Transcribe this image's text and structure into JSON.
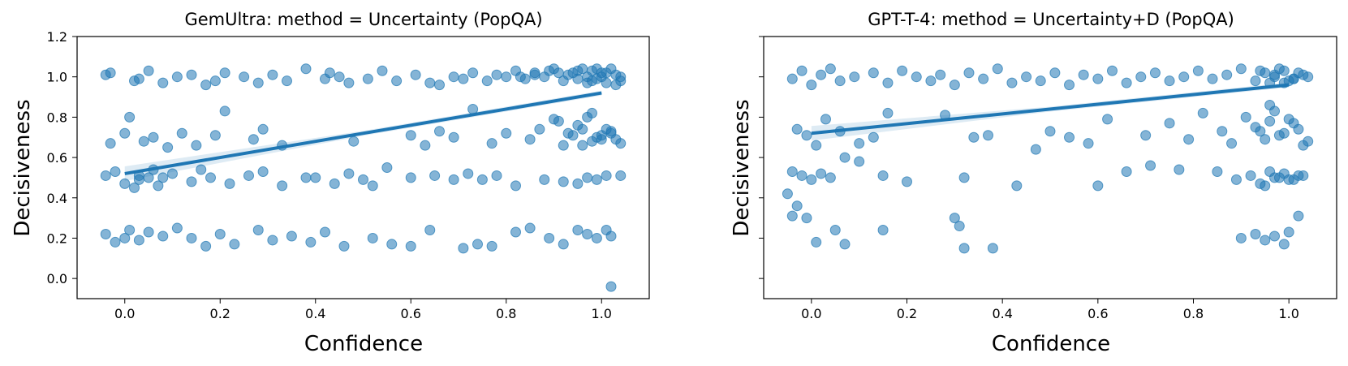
{
  "chart_data": [
    {
      "type": "scatter",
      "title": "GemUltra: method = Uncertainty (PopQA)",
      "xlabel": "Confidence",
      "ylabel": "Decisiveness",
      "xlim": [
        -0.1,
        1.1
      ],
      "ylim": [
        -0.1,
        1.2
      ],
      "xticks": [
        "0.0",
        "0.2",
        "0.4",
        "0.6",
        "0.8",
        "1.0"
      ],
      "yticks": [
        "0.0",
        "0.2",
        "0.4",
        "0.6",
        "0.8",
        "1.0",
        "1.2"
      ],
      "show_yticklabels": true,
      "grid": false,
      "color": "#1f77b4",
      "regression": {
        "x": [
          0.0,
          1.0
        ],
        "y": [
          0.52,
          0.92
        ]
      },
      "series": [
        {
          "x": [
            -0.04,
            -0.03,
            0.02,
            0.03,
            0.05,
            0.08,
            0.11,
            0.14,
            0.17,
            0.19,
            0.21,
            0.25,
            0.28,
            0.31,
            0.34,
            0.38,
            0.42,
            0.43,
            0.45,
            0.47,
            0.51,
            0.54,
            0.57,
            0.61,
            0.64,
            0.66,
            0.69,
            0.71,
            0.73,
            0.76,
            0.78,
            0.8,
            0.82,
            0.84,
            0.86,
            0.88,
            0.9,
            0.92,
            0.93,
            0.95,
            0.97,
            0.99,
            1.01,
            1.03,
            1.04,
            0.96,
            0.98,
            1.0,
            1.02,
            0.94,
            0.97,
            1.01,
            1.03,
            0.99,
            0.95,
            0.98,
            1.0,
            1.04,
            0.91,
            0.89,
            0.86,
            0.83,
            -0.03,
            0.0,
            0.01,
            0.04,
            0.06,
            0.09,
            0.12,
            0.15,
            0.19,
            0.21,
            0.27,
            0.29,
            0.33,
            0.48,
            0.6,
            0.63,
            0.66,
            0.69,
            0.73,
            0.77,
            0.8,
            0.85,
            0.87,
            0.9,
            0.92,
            0.94,
            0.96,
            0.98,
            1.0,
            1.02,
            1.04,
            0.97,
            0.99,
            1.01,
            0.95,
            1.03,
            0.93,
            0.96,
            0.98,
            1.0,
            1.02,
            0.91,
            -0.04,
            -0.02,
            0.0,
            0.02,
            0.03,
            0.05,
            0.07,
            0.1,
            0.14,
            0.18,
            0.22,
            0.26,
            0.29,
            0.33,
            0.4,
            0.44,
            0.47,
            0.5,
            0.52,
            0.55,
            0.6,
            0.65,
            0.69,
            0.72,
            0.75,
            0.78,
            0.82,
            0.88,
            0.92,
            0.95,
            0.97,
            0.99,
            1.01,
            1.04,
            0.03,
            0.06,
            0.08,
            0.16,
            0.38,
            -0.04,
            -0.02,
            0.0,
            0.01,
            0.03,
            0.05,
            0.08,
            0.11,
            0.14,
            0.17,
            0.2,
            0.23,
            0.28,
            0.31,
            0.35,
            0.39,
            0.42,
            0.46,
            0.52,
            0.56,
            0.6,
            0.64,
            0.71,
            0.74,
            0.77,
            0.82,
            0.85,
            0.89,
            0.92,
            0.95,
            0.97,
            0.99,
            1.01,
            1.02,
            1.02
          ],
          "y": [
            1.01,
            1.02,
            0.98,
            0.99,
            1.03,
            0.97,
            1.0,
            1.01,
            0.96,
            0.98,
            1.02,
            1.0,
            0.97,
            1.01,
            0.98,
            1.04,
            0.99,
            1.02,
            1.0,
            0.97,
            0.99,
            1.03,
            0.98,
            1.01,
            0.97,
            0.96,
            1.0,
            0.99,
            1.02,
            0.98,
            1.01,
            1.0,
            1.03,
            0.99,
            1.02,
            1.0,
            1.04,
            0.98,
            1.01,
            1.03,
            1.0,
            0.99,
            1.02,
            1.01,
            0.98,
            1.04,
            1.03,
            1.02,
            1.04,
            1.02,
            0.97,
            0.97,
            0.96,
            1.04,
            0.99,
            0.98,
            1.0,
            1.0,
            1.02,
            1.03,
            1.01,
            1.0,
            0.67,
            0.72,
            0.8,
            0.68,
            0.7,
            0.65,
            0.72,
            0.66,
            0.71,
            0.83,
            0.69,
            0.74,
            0.66,
            0.68,
            0.71,
            0.66,
            0.73,
            0.7,
            0.84,
            0.67,
            0.72,
            0.69,
            0.74,
            0.79,
            0.66,
            0.71,
            0.74,
            0.82,
            0.69,
            0.72,
            0.67,
            0.8,
            0.7,
            0.74,
            0.76,
            0.69,
            0.72,
            0.66,
            0.68,
            0.71,
            0.73,
            0.78,
            0.51,
            0.53,
            0.47,
            0.45,
            0.49,
            0.5,
            0.46,
            0.52,
            0.48,
            0.5,
            0.47,
            0.51,
            0.53,
            0.46,
            0.5,
            0.47,
            0.52,
            0.49,
            0.46,
            0.55,
            0.5,
            0.51,
            0.49,
            0.52,
            0.49,
            0.51,
            0.46,
            0.49,
            0.48,
            0.47,
            0.5,
            0.49,
            0.51,
            0.51,
            0.51,
            0.54,
            0.5,
            0.54,
            0.5,
            0.22,
            0.18,
            0.2,
            0.24,
            0.19,
            0.23,
            0.21,
            0.25,
            0.2,
            0.16,
            0.22,
            0.17,
            0.24,
            0.19,
            0.21,
            0.18,
            0.23,
            0.16,
            0.2,
            0.17,
            0.16,
            0.24,
            0.15,
            0.17,
            0.16,
            0.23,
            0.25,
            0.2,
            0.17,
            0.24,
            0.22,
            0.2,
            0.24,
            0.21,
            -0.04
          ]
        }
      ]
    },
    {
      "type": "scatter",
      "title": "GPT-T-4: method = Uncertainty+D (PopQA)",
      "xlabel": "Confidence",
      "ylabel": "Decisiveness",
      "xlim": [
        -0.1,
        1.1
      ],
      "ylim": [
        -0.1,
        1.2
      ],
      "xticks": [
        "0.0",
        "0.2",
        "0.4",
        "0.6",
        "0.8",
        "1.0"
      ],
      "yticks": [
        "0.0",
        "0.2",
        "0.4",
        "0.6",
        "0.8",
        "1.0",
        "1.2"
      ],
      "show_yticklabels": false,
      "grid": false,
      "color": "#1f77b4",
      "regression": {
        "x": [
          0.0,
          1.0
        ],
        "y": [
          0.72,
          0.96
        ]
      },
      "series": [
        {
          "x": [
            -0.04,
            -0.02,
            0.0,
            0.02,
            0.04,
            0.06,
            0.09,
            0.13,
            0.16,
            0.19,
            0.22,
            0.25,
            0.27,
            0.3,
            0.33,
            0.36,
            0.39,
            0.42,
            0.45,
            0.48,
            0.51,
            0.54,
            0.57,
            0.6,
            0.63,
            0.66,
            0.69,
            0.72,
            0.75,
            0.78,
            0.81,
            0.84,
            0.87,
            0.9,
            0.93,
            0.95,
            0.97,
            0.99,
            1.01,
            1.03,
            1.04,
            0.96,
            0.98,
            1.0,
            1.02,
            0.94,
            0.97,
            1.01,
            0.99,
            -0.03,
            -0.01,
            0.01,
            0.03,
            0.06,
            0.1,
            0.13,
            0.16,
            0.28,
            0.34,
            0.37,
            0.5,
            0.54,
            0.58,
            0.62,
            0.7,
            0.75,
            0.79,
            0.82,
            0.86,
            0.88,
            0.91,
            0.93,
            0.95,
            0.97,
            0.99,
            1.01,
            1.03,
            0.96,
            0.98,
            1.0,
            1.02,
            1.04,
            0.94,
            0.96,
            -0.04,
            -0.02,
            0.0,
            0.02,
            0.04,
            0.07,
            0.1,
            0.15,
            0.2,
            0.32,
            0.43,
            0.47,
            0.6,
            0.66,
            0.71,
            0.77,
            0.85,
            0.89,
            0.92,
            0.95,
            0.97,
            0.99,
            1.01,
            1.03,
            0.94,
            0.96,
            0.98,
            1.0,
            1.02,
            -0.05,
            -0.04,
            -0.03,
            -0.01,
            0.01,
            0.05,
            0.07,
            0.15,
            0.3,
            0.31,
            0.32,
            0.38,
            0.9,
            0.93,
            0.95,
            0.97,
            0.99,
            1.0,
            1.02
          ],
          "y": [
            0.99,
            1.03,
            0.96,
            1.01,
            1.04,
            0.98,
            1.0,
            1.02,
            0.97,
            1.03,
            1.0,
            0.98,
            1.01,
            0.96,
            1.02,
            0.99,
            1.04,
            0.97,
            1.0,
            0.98,
            1.02,
            0.96,
            1.01,
            0.99,
            1.03,
            0.97,
            1.0,
            1.02,
            0.98,
            1.0,
            1.03,
            0.99,
            1.01,
            1.04,
            0.98,
            1.02,
            1.0,
            1.03,
            0.99,
            1.01,
            1.0,
            0.97,
            1.04,
            0.98,
            1.02,
            1.03,
            1.01,
            0.99,
            0.97,
            0.74,
            0.71,
            0.66,
            0.79,
            0.73,
            0.67,
            0.7,
            0.82,
            0.81,
            0.7,
            0.71,
            0.73,
            0.7,
            0.67,
            0.79,
            0.71,
            0.77,
            0.69,
            0.82,
            0.73,
            0.67,
            0.8,
            0.75,
            0.69,
            0.83,
            0.72,
            0.77,
            0.66,
            0.86,
            0.71,
            0.79,
            0.74,
            0.68,
            0.73,
            0.78,
            0.53,
            0.51,
            0.49,
            0.52,
            0.5,
            0.6,
            0.58,
            0.51,
            0.48,
            0.5,
            0.46,
            0.64,
            0.46,
            0.53,
            0.56,
            0.54,
            0.53,
            0.49,
            0.51,
            0.46,
            0.5,
            0.52,
            0.49,
            0.51,
            0.47,
            0.53,
            0.5,
            0.49,
            0.51,
            0.42,
            0.31,
            0.36,
            0.3,
            0.18,
            0.24,
            0.17,
            0.24,
            0.3,
            0.26,
            0.15,
            0.15,
            0.2,
            0.22,
            0.19,
            0.21,
            0.17,
            0.23,
            0.31
          ]
        }
      ]
    }
  ]
}
